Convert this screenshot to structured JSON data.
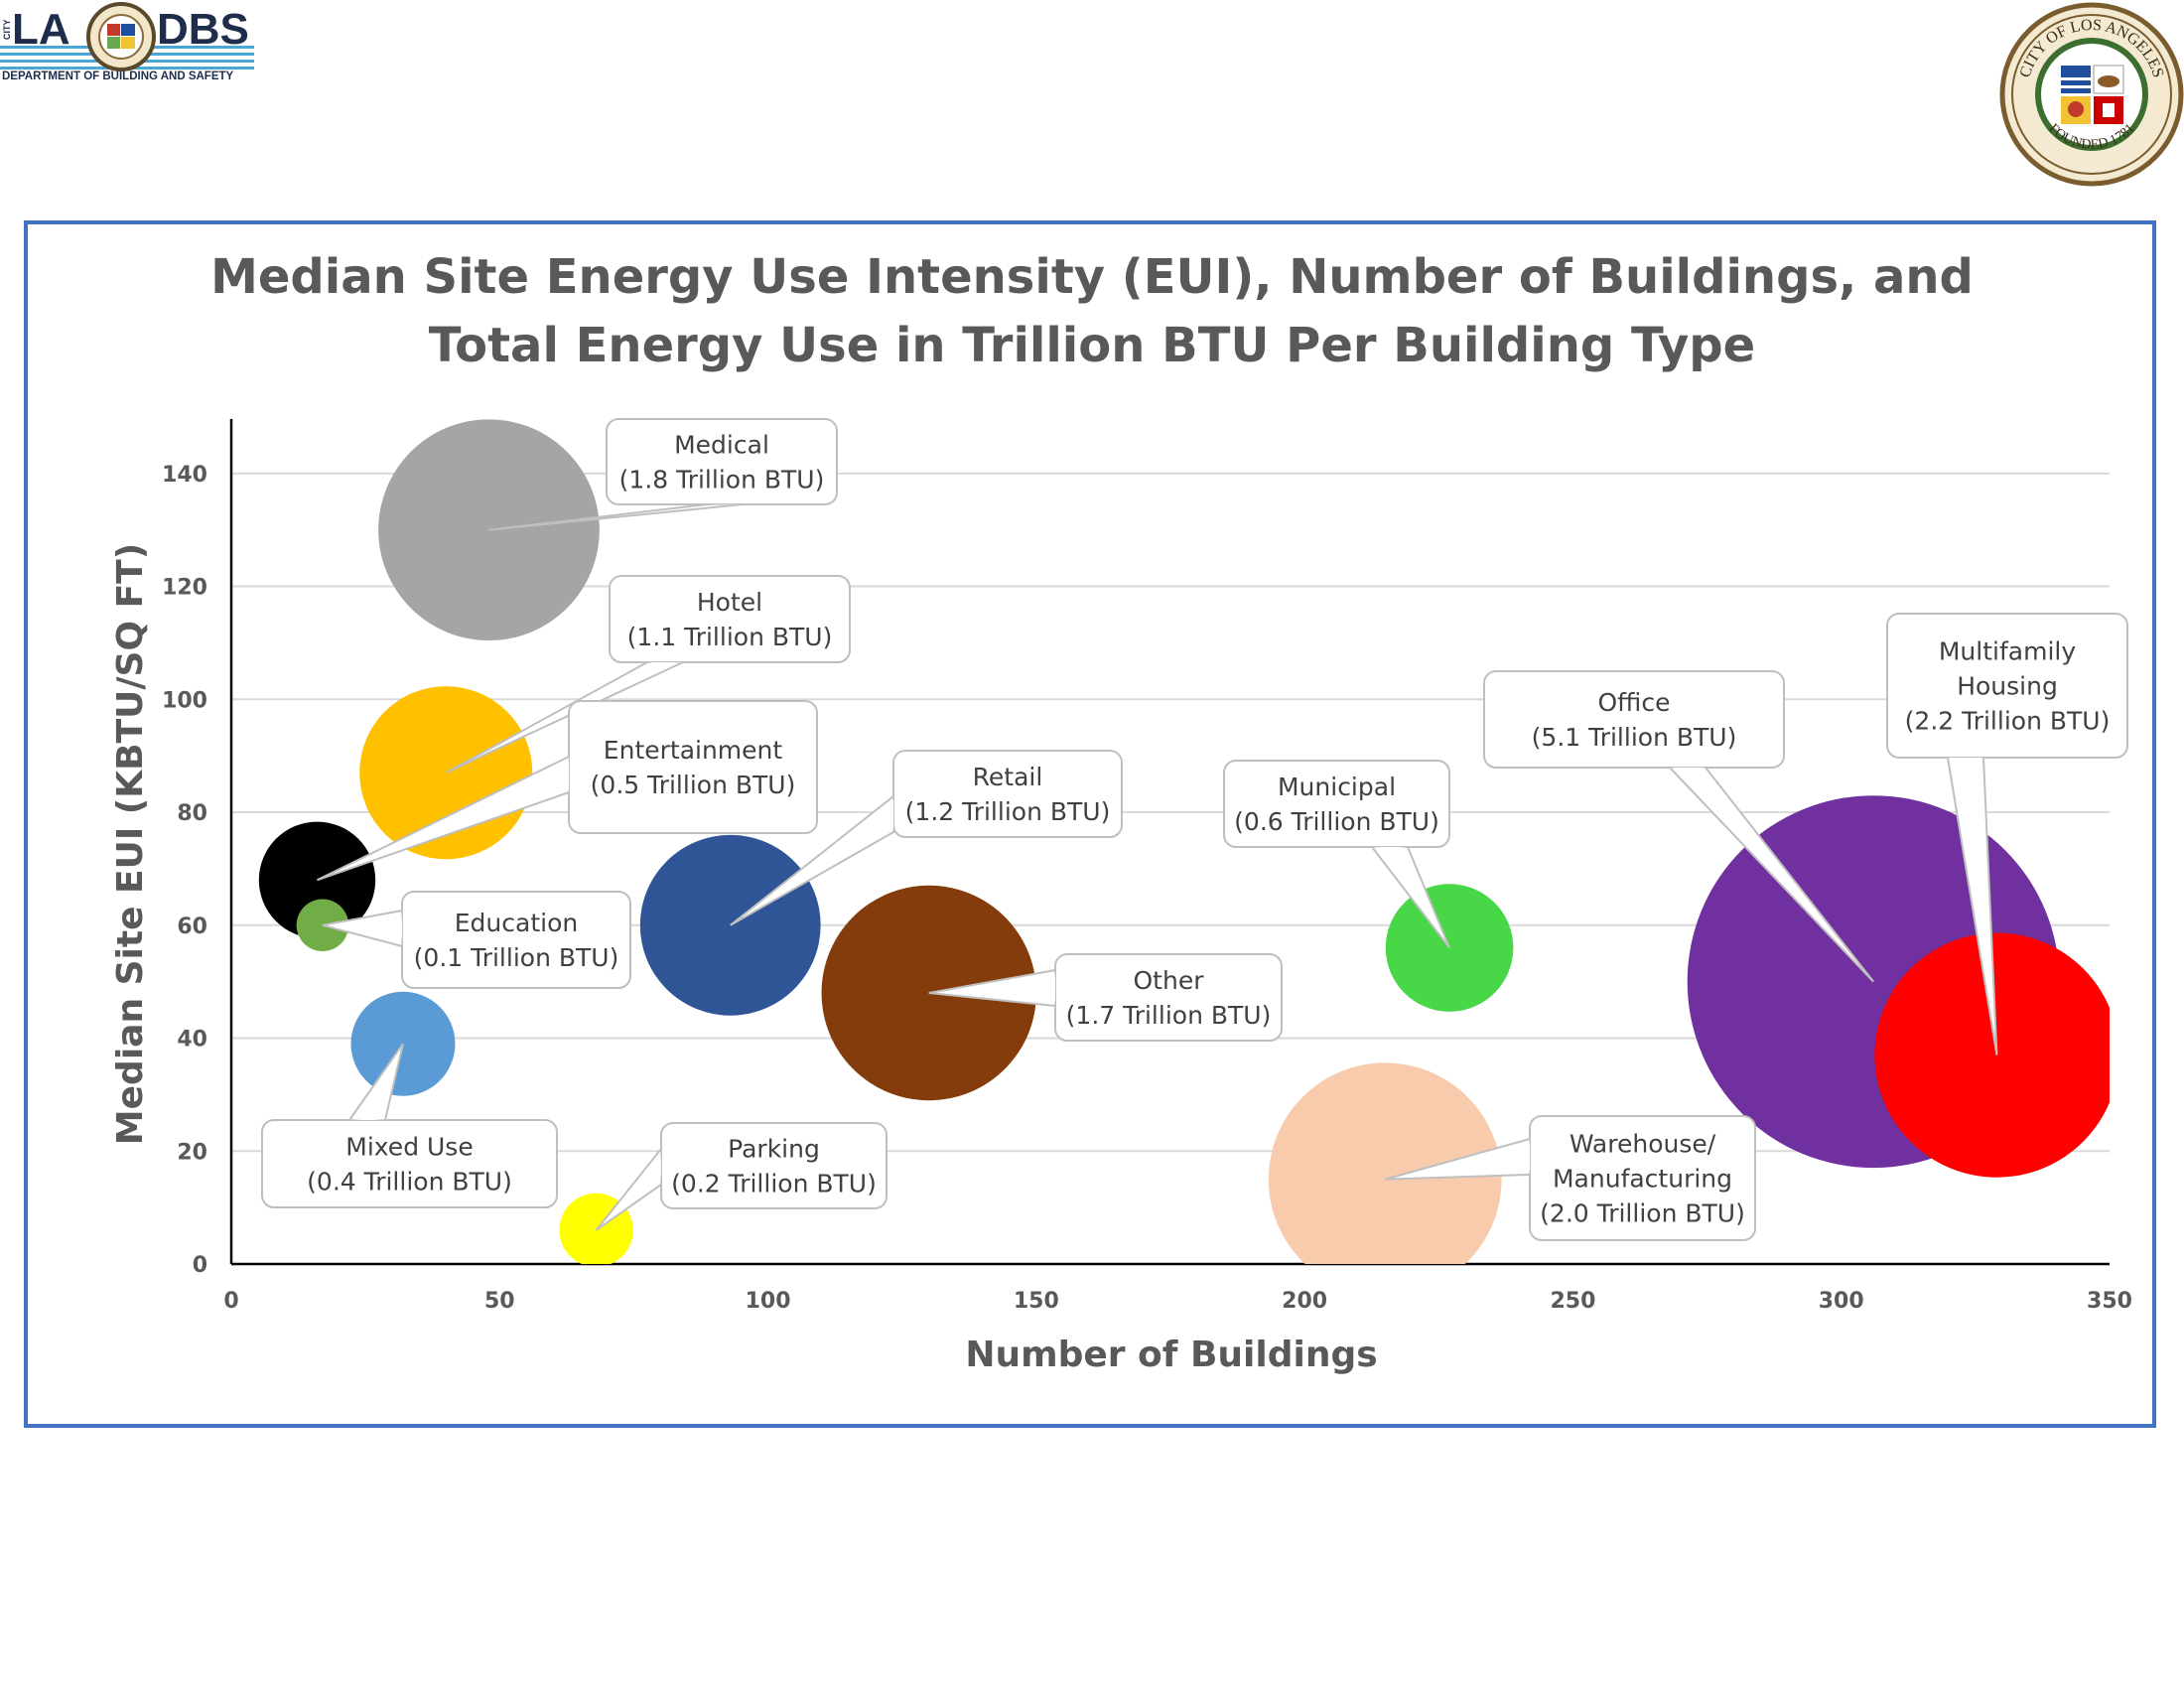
{
  "header": {
    "logo": {
      "city_word": "CITY",
      "left_text": "LA",
      "right_text": "DBS",
      "subtitle": "DEPARTMENT OF BUILDING AND SAFETY",
      "icon": "city-seal-icon"
    },
    "seal": {
      "icon": "city-seal-icon",
      "top_text": "CITY OF LOS ANGELES",
      "bottom_text": "FOUNDED 1781"
    }
  },
  "colors": {
    "frame": "#4472c4",
    "text": "#595959",
    "grid": "#d9d9d9"
  },
  "chart_data": {
    "type": "bubble",
    "title_lines": [
      "Median Site Energy Use Intensity (EUI), Number of Buildings, and",
      "Total Energy Use in Trillion BTU Per Building Type"
    ],
    "xlabel": "Number of Buildings",
    "ylabel": "Median Site EUI (KBTU/SQ FT)",
    "xlim": [
      0,
      350
    ],
    "ylim": [
      0,
      150
    ],
    "xticks": [
      0,
      50,
      100,
      150,
      200,
      250,
      300,
      350
    ],
    "yticks": [
      0,
      20,
      40,
      60,
      80,
      100,
      120,
      140
    ],
    "grid": "horizontal",
    "legend": "none (callout labels)",
    "series": [
      {
        "name": "Medical",
        "x": 48,
        "y": 130,
        "size": 1.8,
        "color": "#a5a5a5",
        "label_lines": [
          "Medical",
          "(1.8 Trillion BTU)"
        ]
      },
      {
        "name": "Hotel",
        "x": 40,
        "y": 87,
        "size": 1.1,
        "color": "#ffc000",
        "label_lines": [
          "Hotel",
          "(1.1 Trillion BTU)"
        ]
      },
      {
        "name": "Entertainment",
        "x": 16,
        "y": 68,
        "size": 0.5,
        "color": "#000000",
        "label_lines": [
          "Entertainment",
          "(0.5 Trillion BTU)"
        ]
      },
      {
        "name": "Education",
        "x": 17,
        "y": 60,
        "size": 0.1,
        "color": "#70ad47",
        "label_lines": [
          "Education",
          "(0.1 Trillion BTU)"
        ]
      },
      {
        "name": "Mixed Use",
        "x": 32,
        "y": 39,
        "size": 0.4,
        "color": "#5b9bd5",
        "label_lines": [
          "Mixed Use",
          "(0.4 Trillion BTU)"
        ]
      },
      {
        "name": "Parking",
        "x": 68,
        "y": 6,
        "size": 0.2,
        "color": "#ffff00",
        "label_lines": [
          "Parking",
          "(0.2 Trillion BTU)"
        ]
      },
      {
        "name": "Retail",
        "x": 93,
        "y": 60,
        "size": 1.2,
        "color": "#2f5597",
        "label_lines": [
          "Retail",
          "(1.2 Trillion BTU)"
        ]
      },
      {
        "name": "Other",
        "x": 130,
        "y": 48,
        "size": 1.7,
        "color": "#843c0c",
        "label_lines": [
          "Other",
          "(1.7 Trillion BTU)"
        ]
      },
      {
        "name": "Municipal",
        "x": 227,
        "y": 56,
        "size": 0.6,
        "color": "#47d747",
        "label_lines": [
          "Municipal",
          "(0.6 Trillion BTU)"
        ]
      },
      {
        "name": "Warehouse/ Manufacturing",
        "x": 215,
        "y": 15,
        "size": 2.0,
        "color": "#f8cbad",
        "label_lines": [
          "Warehouse/",
          "Manufacturing",
          "(2.0 Trillion BTU)"
        ]
      },
      {
        "name": "Office",
        "x": 306,
        "y": 50,
        "size": 5.1,
        "color": "#7030a0",
        "label_lines": [
          "Office",
          "(5.1 Trillion BTU)"
        ]
      },
      {
        "name": "Multifamily Housing",
        "x": 329,
        "y": 37,
        "size": 2.2,
        "color": "#ff0000",
        "label_lines": [
          "Multifamily",
          "Housing",
          "(2.2 Trillion BTU)"
        ]
      }
    ]
  }
}
